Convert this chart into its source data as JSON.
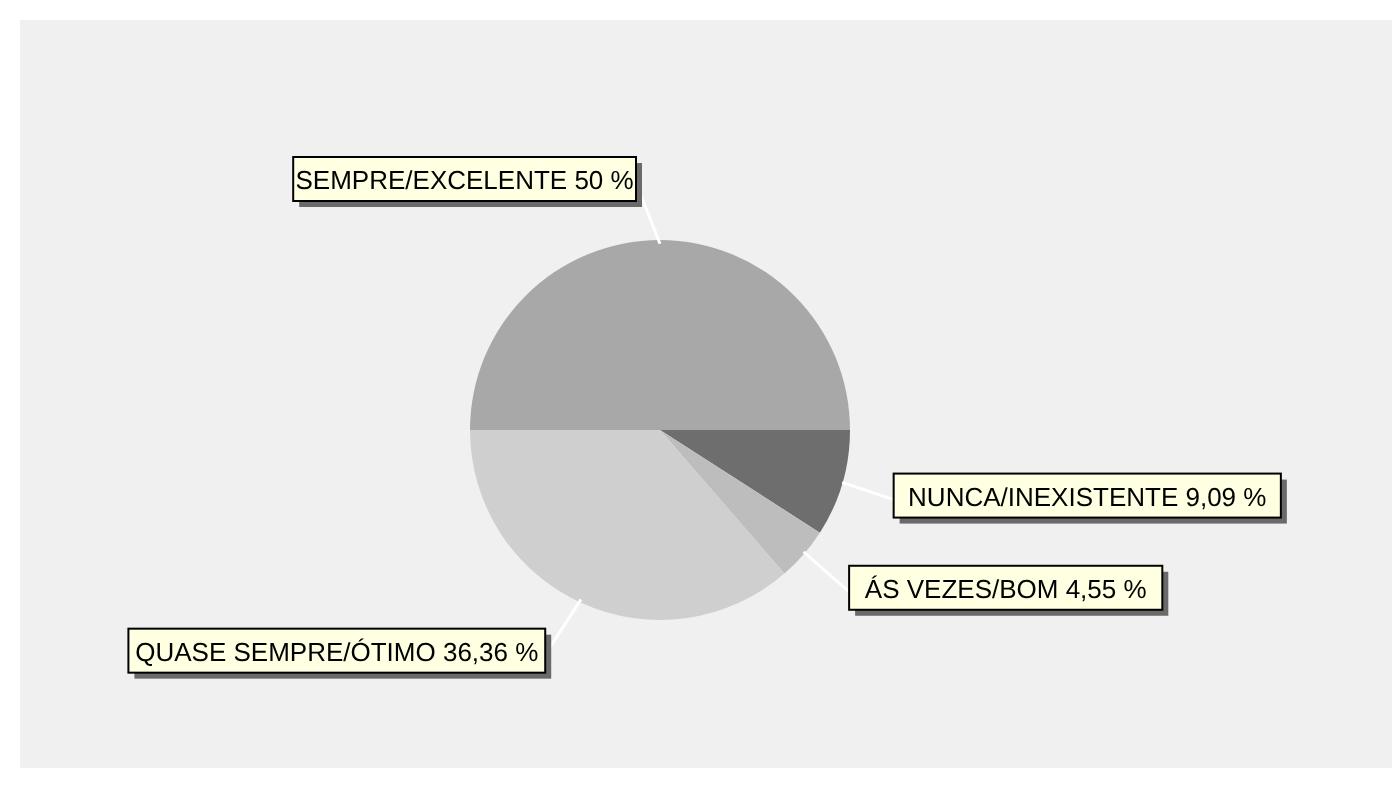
{
  "chart_data": {
    "type": "pie",
    "categories": [
      "SEMPRE/EXCELENTE",
      "NUNCA/INEXISTENTE",
      "ÁS VEZES/BOM",
      "QUASE SEMPRE/ÓTIMO"
    ],
    "values": [
      50,
      9.09,
      4.55,
      36.36
    ],
    "value_labels": [
      "50 %",
      "9,09 %",
      "4,55 %",
      "36,36 %"
    ],
    "colors": [
      "#a8a8a8",
      "#6e6e6e",
      "#bdbdbd",
      "#cfcfcf"
    ]
  }
}
